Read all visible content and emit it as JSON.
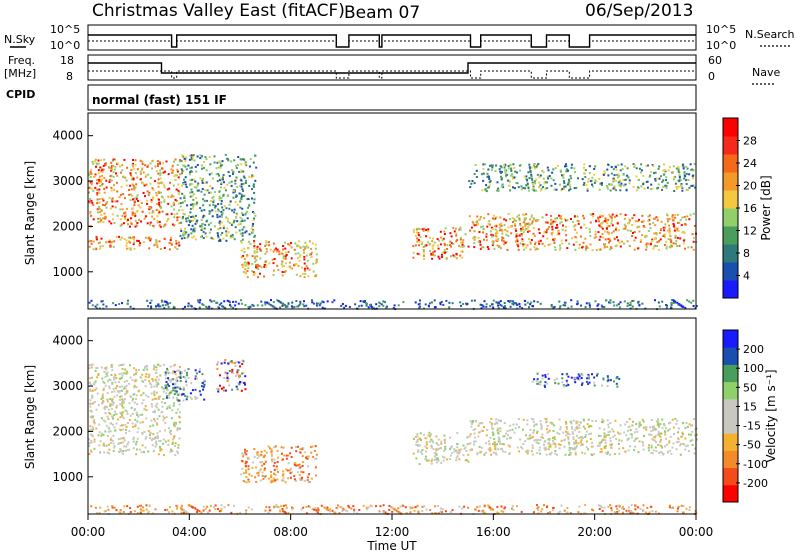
{
  "header": {
    "station": "Christmas Valley East (fitACF)",
    "beam": "Beam 07",
    "date": "06/Sep/2013",
    "cpid_label": "CPID",
    "cpid_value": "normal (fast) 151 IF"
  },
  "aux_panels": {
    "nsky_label": "N.Sky",
    "nsearch_label": "N.Search",
    "nsky_ticks": [
      "10^5",
      "10^0"
    ],
    "nsearch_ticks": [
      "10^5",
      "10^0"
    ],
    "freq_label_1": "Freq.",
    "freq_label_2": "[MHz]",
    "freq_ticks": [
      "18",
      "8"
    ],
    "nave_label": "Nave",
    "nave_ticks": [
      "60",
      "0"
    ]
  },
  "axes": {
    "xlabel": "Time UT",
    "x_ticks": [
      "00:00",
      "04:00",
      "08:00",
      "12:00",
      "16:00",
      "20:00",
      "00:00"
    ],
    "ylabel": "Slant Range [km]",
    "y_ticks": [
      "1000",
      "2000",
      "3000",
      "4000"
    ]
  },
  "colorbars": {
    "power_label": "Power [dB]",
    "power_ticks": [
      "28",
      "24",
      "20",
      "16",
      "12",
      "8",
      "4"
    ],
    "power_colors": [
      "#1a1aff",
      "#1a4fb0",
      "#2e7a7a",
      "#4a9e5c",
      "#8fd06a",
      "#f5c842",
      "#f59a2a",
      "#f56a1a",
      "#f52a1a",
      "#ff0000"
    ],
    "velocity_label": "Velocity [m s⁻¹]",
    "velocity_ticks": [
      "200",
      "100",
      "50",
      "15",
      "-15",
      "-50",
      "-100",
      "-200"
    ],
    "velocity_colors": [
      "#ff0000",
      "#f54a1a",
      "#f58a2a",
      "#f5b032",
      "#c8c8c0",
      "#c8c8c0",
      "#8fd06a",
      "#4a9e5c",
      "#1a4fb0",
      "#1a1aff"
    ]
  },
  "chart_data": [
    {
      "type": "heatmap",
      "title": "Power",
      "x_range_hours": [
        0,
        24
      ],
      "y_range_km": [
        180,
        4500
      ],
      "colorbar_range_db": [
        0,
        32
      ],
      "scatter_bands": [
        {
          "t_start": 0.0,
          "t_end": 3.6,
          "range_start": 1500,
          "range_end": 1800,
          "level": "high"
        },
        {
          "t_start": 0.0,
          "t_end": 3.6,
          "range_start": 2000,
          "range_end": 3500,
          "level": "high"
        },
        {
          "t_start": 3.6,
          "t_end": 6.6,
          "range_start": 1700,
          "range_end": 3600,
          "level": "medium"
        },
        {
          "t_start": 6.0,
          "t_end": 9.0,
          "range_start": 900,
          "range_end": 1700,
          "level": "high"
        },
        {
          "t_start": 12.8,
          "t_end": 15.0,
          "range_start": 1300,
          "range_end": 2000,
          "level": "high"
        },
        {
          "t_start": 15.0,
          "t_end": 24.0,
          "range_start": 1500,
          "range_end": 2300,
          "level": "high"
        },
        {
          "t_start": 15.0,
          "t_end": 24.0,
          "range_start": 2800,
          "range_end": 3400,
          "level": "medium"
        },
        {
          "t_start": 0.0,
          "t_end": 24.0,
          "range_start": 200,
          "range_end": 400,
          "level": "low"
        }
      ]
    },
    {
      "type": "heatmap",
      "title": "Velocity",
      "x_range_hours": [
        0,
        24
      ],
      "y_range_km": [
        180,
        4500
      ],
      "colorbar_range_ms": [
        -250,
        250
      ],
      "scatter_bands": [
        {
          "t_start": 0.0,
          "t_end": 3.6,
          "range_start": 1500,
          "range_end": 3500,
          "level": "ground"
        },
        {
          "t_start": 3.0,
          "t_end": 4.6,
          "range_start": 2700,
          "range_end": 3400,
          "level": "positive"
        },
        {
          "t_start": 5.0,
          "t_end": 6.2,
          "range_start": 2900,
          "range_end": 3600,
          "level": "mixed"
        },
        {
          "t_start": 6.0,
          "t_end": 9.0,
          "range_start": 900,
          "range_end": 1700,
          "level": "negative"
        },
        {
          "t_start": 12.8,
          "t_end": 15.0,
          "range_start": 1300,
          "range_end": 2000,
          "level": "ground"
        },
        {
          "t_start": 15.0,
          "t_end": 24.0,
          "range_start": 1500,
          "range_end": 2300,
          "level": "ground"
        },
        {
          "t_start": 17.5,
          "t_end": 21.0,
          "range_start": 3000,
          "range_end": 3300,
          "level": "positive"
        },
        {
          "t_start": 0.0,
          "t_end": 24.0,
          "range_start": 200,
          "range_end": 400,
          "level": "negative"
        }
      ]
    }
  ]
}
